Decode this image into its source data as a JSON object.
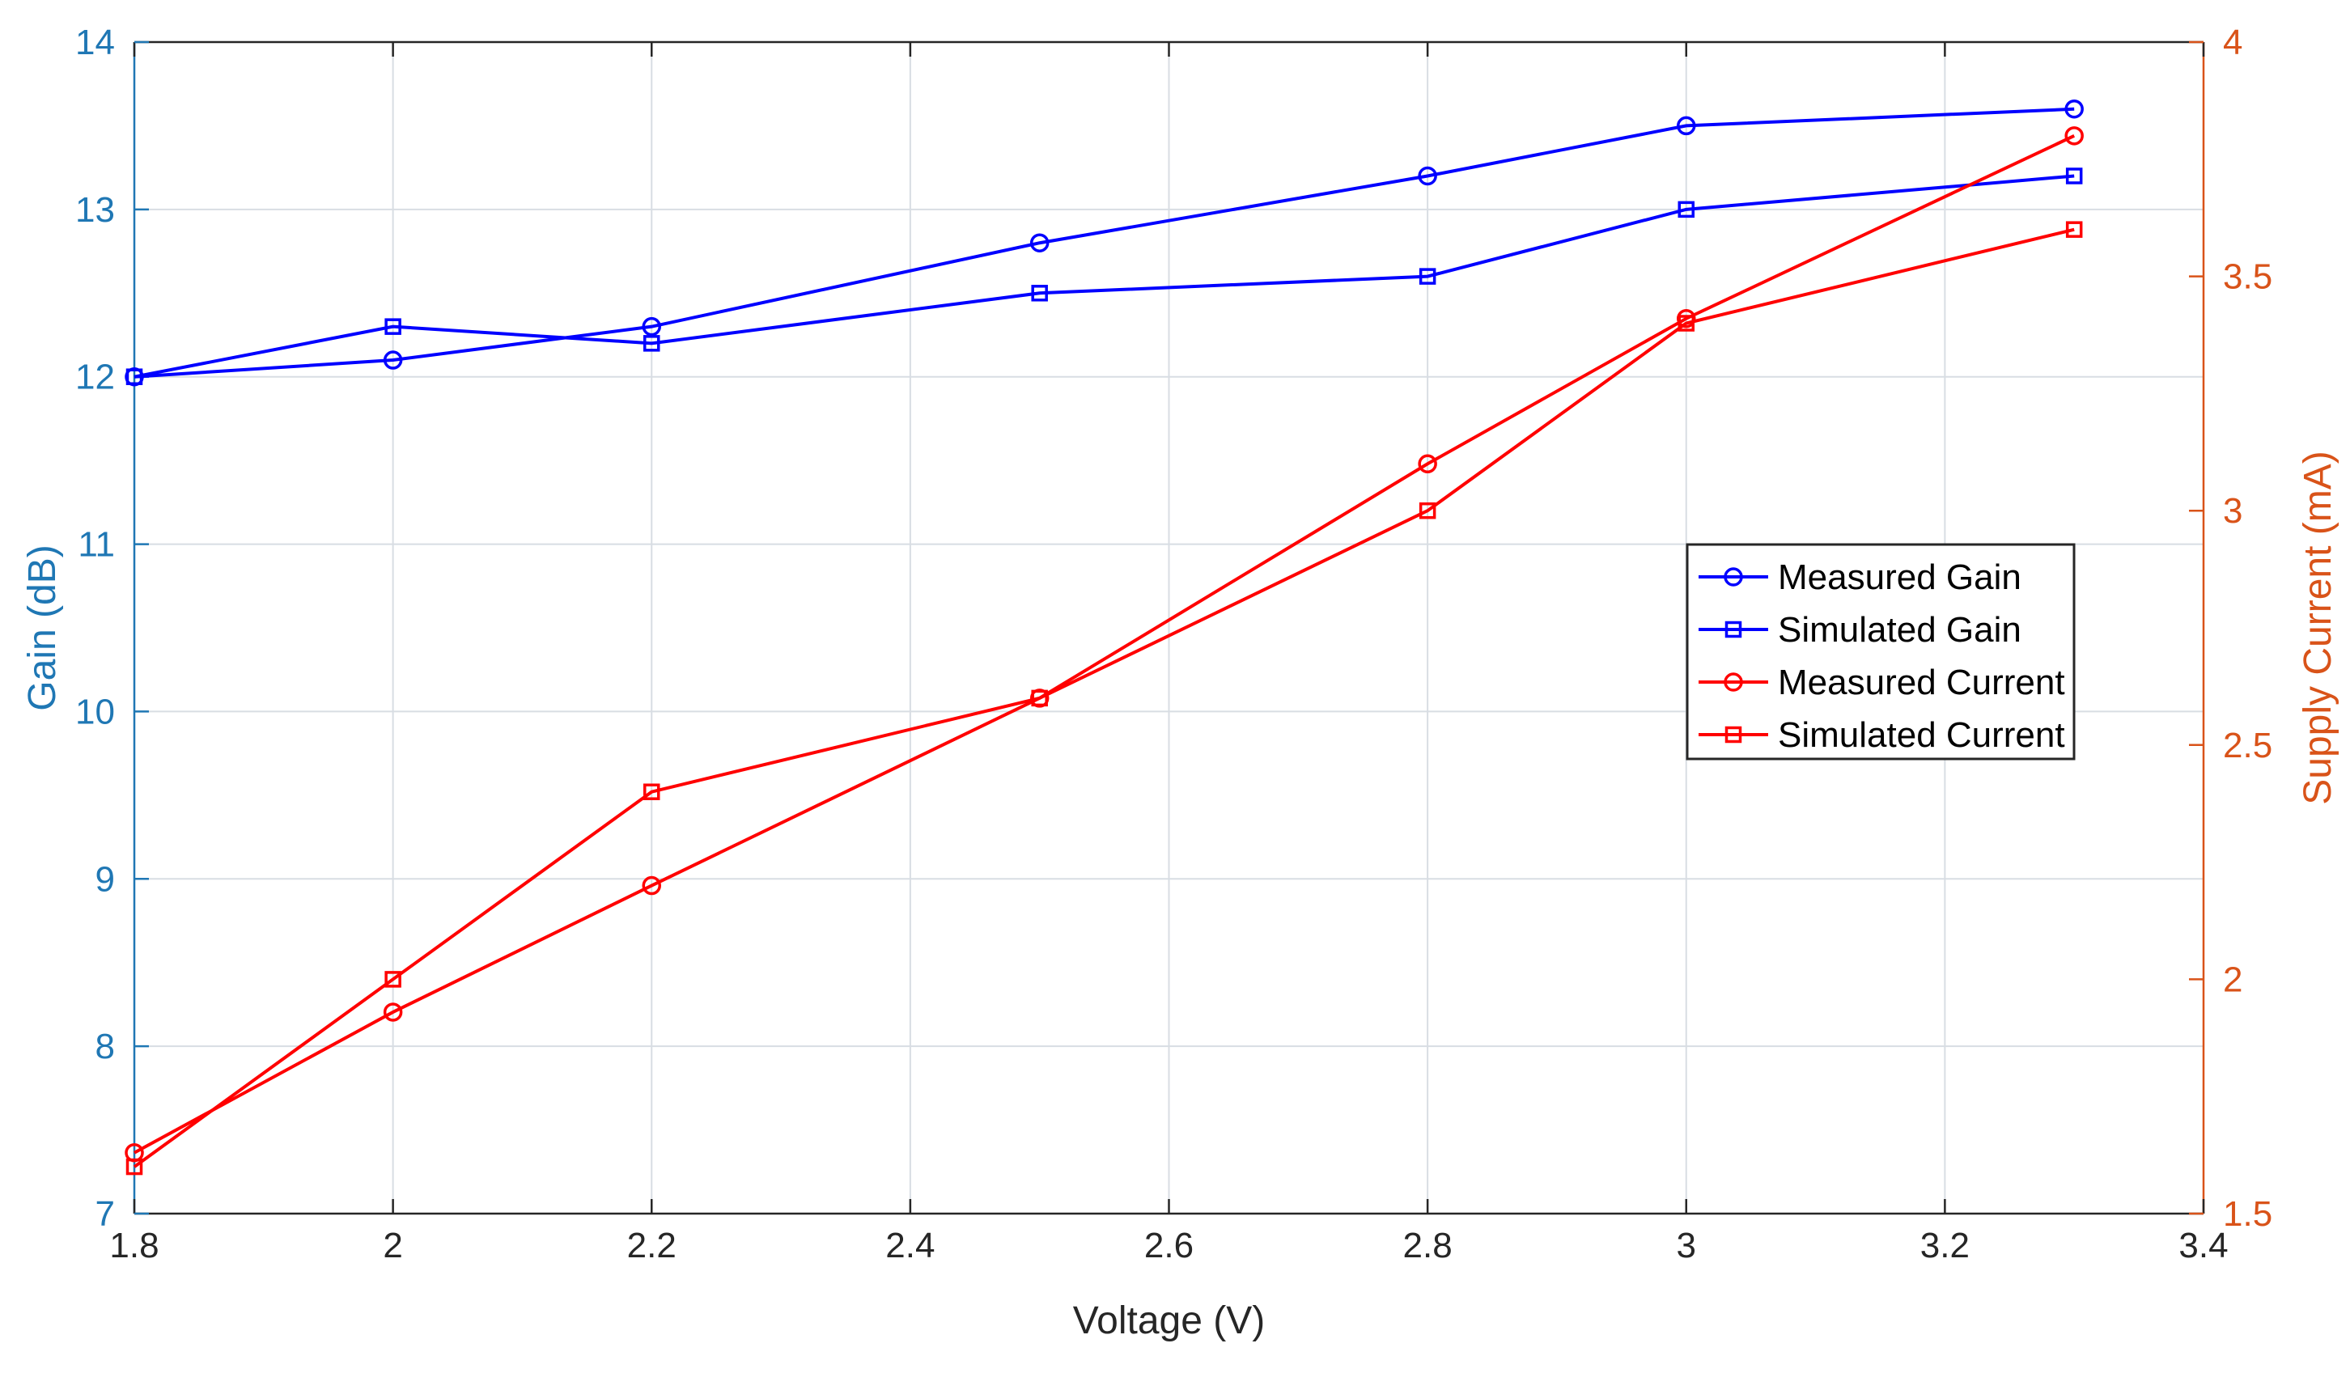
{
  "chart_data": {
    "type": "line",
    "xlabel": "Voltage (V)",
    "ylabel_left": "Gain (dB)",
    "ylabel_right": "Supply Current (mA)",
    "xlim": [
      1.8,
      3.4
    ],
    "ylim_left": [
      7,
      14
    ],
    "ylim_right": [
      1.5,
      4
    ],
    "x_ticks": [
      1.8,
      2,
      2.2,
      2.4,
      2.6,
      2.8,
      3,
      3.2,
      3.4
    ],
    "x_tick_labels": [
      "1.8",
      "2",
      "2.2",
      "2.4",
      "2.6",
      "2.8",
      "3",
      "3.2",
      "3.4"
    ],
    "y_left_ticks": [
      7,
      8,
      9,
      10,
      11,
      12,
      13,
      14
    ],
    "y_left_tick_labels": [
      "7",
      "8",
      "9",
      "10",
      "11",
      "12",
      "13",
      "14"
    ],
    "y_right_ticks": [
      1.5,
      2,
      2.5,
      3,
      3.5,
      4
    ],
    "y_right_tick_labels": [
      "1.5",
      "2",
      "2.5",
      "3",
      "3.5",
      "4"
    ],
    "grid": true,
    "legend_position": "right-middle",
    "colors": {
      "left_axis": "#1f77b4",
      "right_axis": "#d95319",
      "gain": "#0000ff",
      "current": "#ff0000",
      "grid": "#d8dde3"
    },
    "series": [
      {
        "name": "Measured Gain",
        "axis": "left",
        "color": "#0000ff",
        "marker": "circle",
        "x": [
          1.8,
          2,
          2.2,
          2.5,
          2.8,
          3,
          3.3
        ],
        "values": [
          12.0,
          12.1,
          12.3,
          12.8,
          13.2,
          13.5,
          13.6
        ]
      },
      {
        "name": "Simulated Gain",
        "axis": "left",
        "color": "#0000ff",
        "marker": "square",
        "x": [
          1.8,
          2,
          2.2,
          2.5,
          2.8,
          3,
          3.3
        ],
        "values": [
          12.0,
          12.3,
          12.2,
          12.5,
          12.6,
          13.0,
          13.2
        ]
      },
      {
        "name": "Measured Current",
        "axis": "right",
        "color": "#ff0000",
        "marker": "circle",
        "x": [
          1.8,
          2,
          2.2,
          2.5,
          2.8,
          3,
          3.3
        ],
        "values": [
          1.63,
          1.93,
          2.2,
          2.6,
          3.1,
          3.41,
          3.8
        ]
      },
      {
        "name": "Simulated Current",
        "axis": "right",
        "color": "#ff0000",
        "marker": "square",
        "x": [
          1.8,
          2,
          2.2,
          2.5,
          2.8,
          3,
          3.3
        ],
        "values": [
          1.6,
          2.0,
          2.4,
          2.6,
          3.0,
          3.4,
          3.6
        ]
      }
    ]
  }
}
